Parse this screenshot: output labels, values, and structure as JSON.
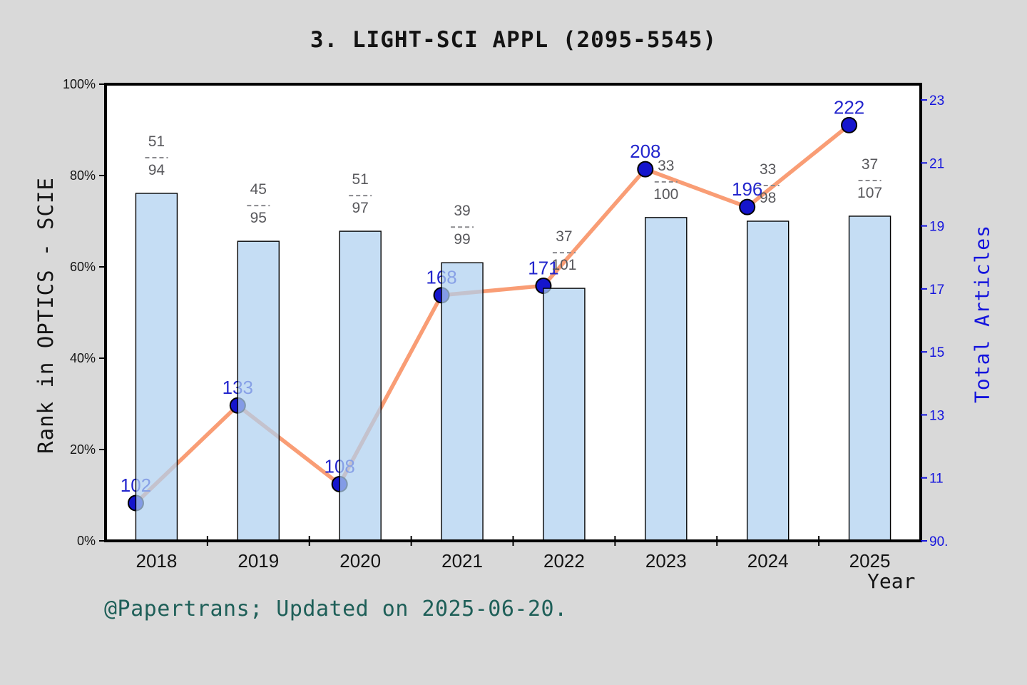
{
  "title": "3. LIGHT-SCI APPL (2095-5545)",
  "footer": "@Papertrans; Updated on 2025-06-20.",
  "chart_data": {
    "type": "bar+line",
    "categories": [
      "2018",
      "2019",
      "2020",
      "2021",
      "2022",
      "2023",
      "2024",
      "2025"
    ],
    "series": [
      {
        "name": "Rank in OPTICS - SCIE",
        "type": "bar",
        "axis": "left",
        "unit": "percent",
        "values": [
          76.1,
          65.6,
          67.8,
          60.9,
          55.3,
          70.8,
          70.0,
          71.1
        ],
        "fractions": [
          {
            "top": "51",
            "bottom": "94"
          },
          {
            "top": "45",
            "bottom": "95"
          },
          {
            "top": "51",
            "bottom": "97"
          },
          {
            "top": "39",
            "bottom": "99"
          },
          {
            "top": "37",
            "bottom": "101"
          },
          {
            "top": "33",
            "bottom": "100"
          },
          {
            "top": "33",
            "bottom": "98"
          },
          {
            "top": "37",
            "bottom": "107"
          }
        ]
      },
      {
        "name": "Total Articles",
        "type": "line",
        "axis": "right",
        "values": [
          102,
          133,
          108,
          168,
          171,
          208,
          196,
          222
        ]
      }
    ],
    "left_axis": {
      "label": "Rank in OPTICS - SCIE",
      "range": [
        0,
        100
      ],
      "ticks": [
        {
          "value": 0,
          "label": "0%"
        },
        {
          "value": 20,
          "label": "20%"
        },
        {
          "value": 40,
          "label": "40%"
        },
        {
          "value": 60,
          "label": "60%"
        },
        {
          "value": 80,
          "label": "80%"
        },
        {
          "value": 100,
          "label": "100%"
        }
      ]
    },
    "right_axis": {
      "label": "Total Articles",
      "range": [
        90,
        235
      ],
      "ticks": [
        {
          "value": 90,
          "label": "90."
        },
        {
          "value": 110,
          "label": "11"
        },
        {
          "value": 130,
          "label": "13"
        },
        {
          "value": 150,
          "label": "15"
        },
        {
          "value": 170,
          "label": "17"
        },
        {
          "value": 190,
          "label": "19"
        },
        {
          "value": 210,
          "label": "21"
        },
        {
          "value": 230,
          "label": "23"
        }
      ]
    },
    "x_axis": {
      "label": "Year"
    },
    "legend": "none",
    "grid": false,
    "colors": {
      "background": "#d9d9d9",
      "plot_background": "#ffffff",
      "bar_fill": "#aed0f0",
      "bar_opacity": 0.72,
      "bar_stroke": "#000000",
      "line": "#f99d75",
      "marker_fill": "#1515cd",
      "marker_stroke": "#000000",
      "value_label": "#2326cd",
      "right_axis_text": "#1414dd",
      "fraction_text": "#58585c",
      "axis_text": "#141414",
      "footer_text": "#1e5f58"
    }
  }
}
